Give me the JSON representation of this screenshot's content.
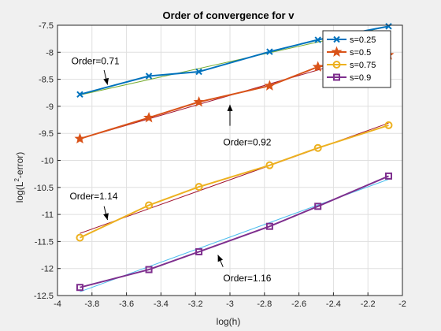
{
  "chart_data": {
    "type": "line",
    "title": "Order of convergence for v",
    "xlabel": "log(h)",
    "ylabel_main": "log(L",
    "ylabel_sup": "2",
    "ylabel_tail": "-error)",
    "xlim": [
      -4,
      -2
    ],
    "ylim": [
      -12.5,
      -7.5
    ],
    "xticks": [
      -4,
      -3.8,
      -3.6,
      -3.4,
      -3.2,
      -3,
      -2.8,
      -2.6,
      -2.4,
      -2.2,
      -2
    ],
    "xtick_labels": [
      "-4",
      "-3.8",
      "-3.6",
      "-3.4",
      "-3.2",
      "-3",
      "-2.8",
      "-2.6",
      "-2.4",
      "-2.2",
      "-2"
    ],
    "yticks": [
      -12.5,
      -12,
      -11.5,
      -11,
      -10.5,
      -10,
      -9.5,
      -9,
      -8.5,
      -8,
      -7.5
    ],
    "ytick_labels": [
      "-12.5",
      "-12",
      "-11.5",
      "-11",
      "-10.5",
      "-10",
      "-9.5",
      "-9",
      "-8.5",
      "-8",
      "-7.5"
    ],
    "grid": true,
    "legend_position": "top-right",
    "x": [
      -3.87,
      -3.47,
      -3.18,
      -2.77,
      -2.49,
      -2.08
    ],
    "series": [
      {
        "name": "s=0.25",
        "color": "#0072BD",
        "marker": "x",
        "values": [
          -8.78,
          -8.44,
          -8.36,
          -7.99,
          -7.77,
          -7.52
        ]
      },
      {
        "name": "s=0.5",
        "color": "#D95319",
        "marker": "star",
        "values": [
          -9.6,
          -9.21,
          -8.92,
          -8.62,
          -8.27,
          -8.05
        ]
      },
      {
        "name": "s=0.75",
        "color": "#EDB120",
        "marker": "circle",
        "values": [
          -11.43,
          -10.83,
          -10.49,
          -10.09,
          -9.77,
          -9.35
        ]
      },
      {
        "name": "s=0.9",
        "color": "#7E2F8E",
        "marker": "square",
        "values": [
          -12.35,
          -12.02,
          -11.69,
          -11.22,
          -10.85,
          -10.29
        ]
      }
    ],
    "fit_lines": [
      {
        "color": "#77AC30",
        "x": [
          -3.87,
          -2.08
        ],
        "y": [
          -8.79,
          -7.52
        ]
      },
      {
        "color": "#A2142F",
        "x": [
          -3.87,
          -2.08
        ],
        "y": [
          -9.6,
          -7.95
        ]
      },
      {
        "color": "#A2142F",
        "x": [
          -3.87,
          -2.08
        ],
        "y": [
          -11.35,
          -9.31
        ]
      },
      {
        "color": "#4DBEEE",
        "x": [
          -3.87,
          -2.08
        ],
        "y": [
          -12.43,
          -10.35
        ]
      }
    ],
    "annotations": [
      {
        "text": "Order=0.71",
        "tx": -3.78,
        "ty": -8.22,
        "ax1": -3.73,
        "ay1": -8.33,
        "ax2": -3.71,
        "ay2": -8.6
      },
      {
        "text": "Order=0.92",
        "tx": -2.9,
        "ty": -9.72,
        "ax1": -3.0,
        "ay1": -9.36,
        "ax2": -3.0,
        "ay2": -8.97
      },
      {
        "text": "Order=1.14",
        "tx": -3.79,
        "ty": -10.72,
        "ax1": -3.73,
        "ay1": -10.85,
        "ax2": -3.71,
        "ay2": -11.1
      },
      {
        "text": "Order=1.16",
        "tx": -2.9,
        "ty": -12.24,
        "ax1": -3.04,
        "ay1": -11.97,
        "ax2": -3.07,
        "ay2": -11.75
      }
    ]
  }
}
